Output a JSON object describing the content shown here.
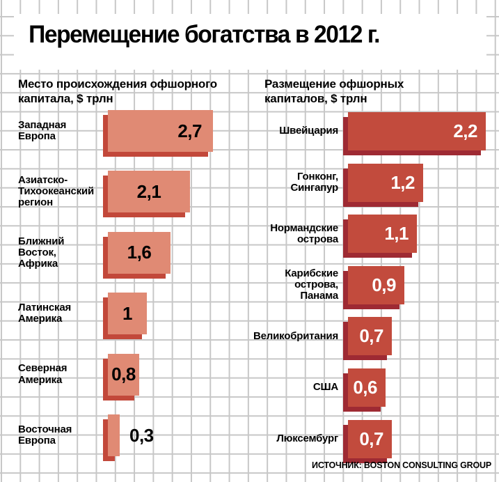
{
  "title": "Перемещение богатства в 2012 г.",
  "source": "ИСТОЧНИК: BOSTON CONSULTING GROUP",
  "colors": {
    "grid_line": "#c7c7c7",
    "background": "#ffffff",
    "left_bar_face": "#e08a74",
    "left_bar_edge": "#c2483a",
    "right_bar_face": "#c24b3d",
    "right_bar_edge": "#9e2a33",
    "text": "#000000"
  },
  "chart_data": [
    {
      "type": "bar",
      "orientation": "horizontal",
      "title": "Место происхождения офшорного\nкапитала, $ трлн",
      "unit": "$ трлн",
      "categories": [
        "Западная\nЕвропа",
        "Азиатско-\nТихоокеанский\nрегион",
        "Ближний\nВосток,\nАфрика",
        "Латинская\nАмерика",
        "Северная\nАмерика",
        "Восточная\nЕвропа"
      ],
      "values": [
        2.7,
        2.1,
        1.6,
        1,
        0.8,
        0.3
      ],
      "value_labels": [
        "2,7",
        "2,1",
        "1,6",
        "1",
        "0,8",
        "0,3"
      ],
      "value_placement": [
        "right",
        "center",
        "center",
        "center",
        "center",
        "outside"
      ],
      "value_color": "#000000",
      "bar_face_color": "#e08a74",
      "bar_edge_color": "#c2483a",
      "legend": "none",
      "grid": "on"
    },
    {
      "type": "bar",
      "orientation": "horizontal",
      "title": "Размещение офшорных\nкапиталов, $ трлн",
      "unit": "$ трлн",
      "categories": [
        "Швейцария",
        "Гонконг,\nСингапур",
        "Нормандские\nострова",
        "Карибские\nострова,\nПанама",
        "Великобритания",
        "США",
        "Люксембург"
      ],
      "values": [
        2.2,
        1.2,
        1.1,
        0.9,
        0.7,
        0.6,
        0.7
      ],
      "value_labels": [
        "2,2",
        "1,2",
        "1,1",
        "0,9",
        "0,7",
        "0,6",
        "0,7"
      ],
      "value_placement": [
        "right",
        "right",
        "right",
        "right",
        "right",
        "right",
        "right"
      ],
      "value_color": "#ffffff",
      "bar_face_color": "#c24b3d",
      "bar_edge_color": "#9e2a33",
      "legend": "none",
      "grid": "on"
    }
  ]
}
